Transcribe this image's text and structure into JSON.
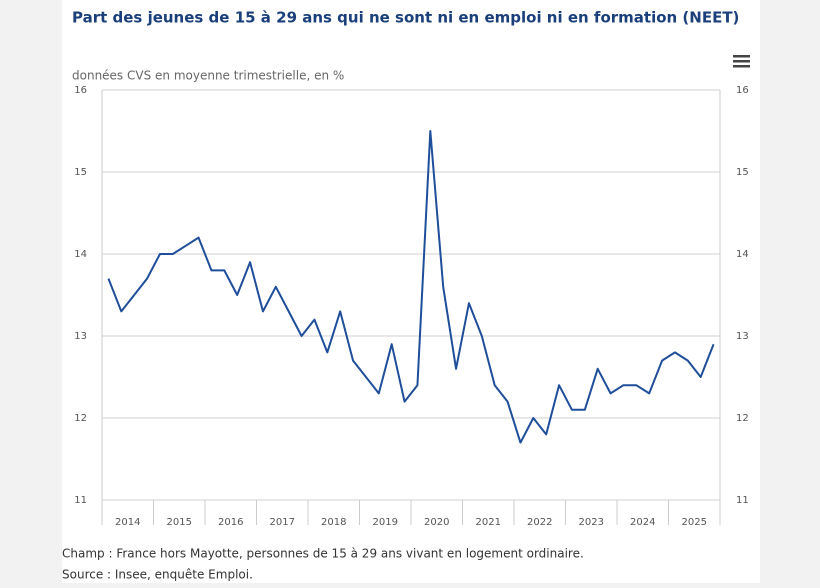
{
  "chart_data": {
    "type": "line",
    "title": "Part des jeunes de 15 à 29 ans qui ne sont ni en emploi ni en formation (NEET)",
    "subtitle": "données CVS en moyenne trimestrielle, en %",
    "x_labels": [
      "2014",
      "2015",
      "2016",
      "2017",
      "2018",
      "2019",
      "2020",
      "2021",
      "2022",
      "2023",
      "2024",
      "2025"
    ],
    "series": [
      {
        "color": "#1f4e9a",
        "values": [
          13.7,
          13.3,
          13.5,
          13.7,
          14.0,
          14.0,
          14.1,
          14.2,
          13.8,
          13.8,
          13.5,
          13.9,
          13.3,
          13.6,
          13.3,
          13.0,
          13.2,
          12.8,
          13.3,
          12.7,
          12.5,
          12.3,
          12.9,
          12.2,
          12.4,
          15.5,
          13.6,
          12.6,
          13.4,
          13.0,
          12.4,
          12.2,
          11.7,
          12.0,
          11.8,
          12.4,
          12.1,
          12.1,
          12.6,
          12.3,
          12.4,
          12.4,
          12.3,
          12.7,
          12.8,
          12.7,
          12.5,
          12.9
        ]
      }
    ],
    "ylim": [
      11,
      16
    ],
    "yticks": [
      11,
      12,
      13,
      14,
      15,
      16
    ],
    "grid": true,
    "notes": [
      "Champ : France hors Mayotte, personnes de 15 à 29 ans vivant en logement ordinaire.",
      "Source : Insee, enquête Emploi."
    ]
  }
}
